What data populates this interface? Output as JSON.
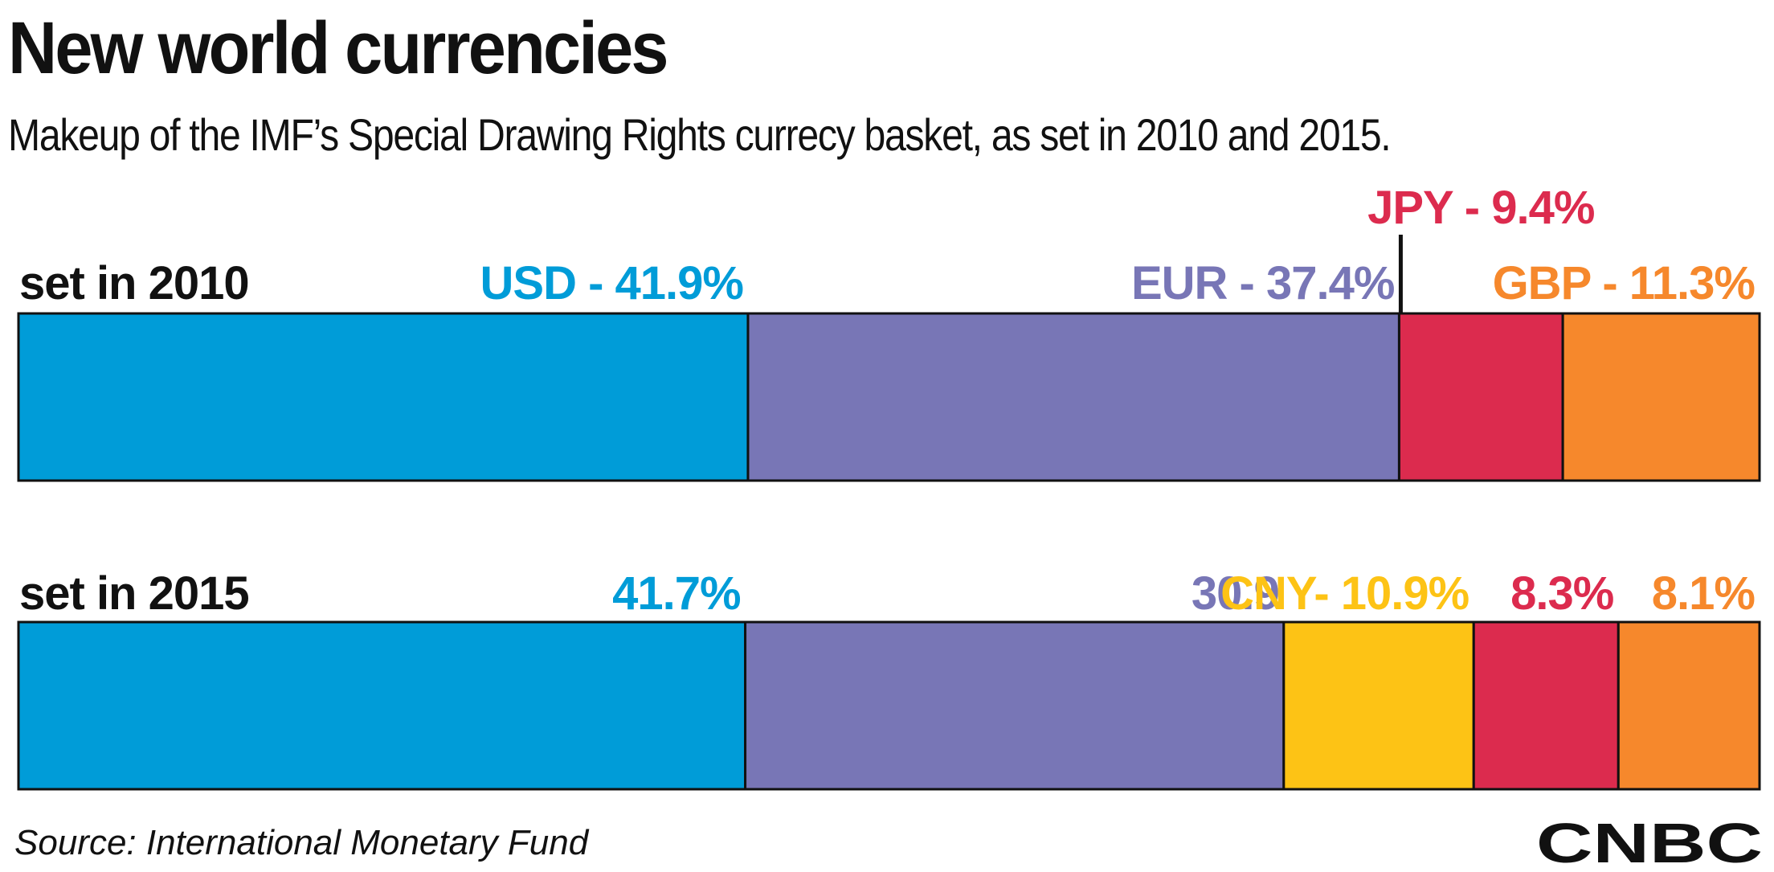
{
  "header": {
    "title": "New world currencies",
    "subtitle": "Makeup of the IMF’s Special Drawing Rights currecy basket, as set in 2010 and 2015."
  },
  "footer": {
    "source": "Source: International Monetary Fund",
    "brand": "CNBC"
  },
  "colors": {
    "USD": "#009cd8",
    "EUR": "#7876b6",
    "CNY": "#fdc315",
    "JPY": "#dc2b4e",
    "GBP": "#f6882c",
    "outline": "#111111"
  },
  "chart_data": {
    "type": "bar",
    "orientation": "horizontal",
    "stacked": true,
    "categories": [
      "set in 2010",
      "set in 2015"
    ],
    "series": [
      {
        "name": "USD",
        "values": [
          41.9,
          41.7
        ],
        "labels": [
          "USD - 41.9%",
          "41.7%"
        ],
        "color": "#009cd8"
      },
      {
        "name": "EUR",
        "values": [
          37.4,
          30.9
        ],
        "labels": [
          "EUR - 37.4%",
          "30.9"
        ],
        "color": "#7876b6"
      },
      {
        "name": "CNY",
        "values": [
          0,
          10.9
        ],
        "labels": [
          "",
          "CNY- 10.9%"
        ],
        "color": "#fdc315"
      },
      {
        "name": "JPY",
        "values": [
          9.4,
          8.3
        ],
        "labels": [
          "JPY - 9.4%",
          "8.3%"
        ],
        "color": "#dc2b4e"
      },
      {
        "name": "GBP",
        "values": [
          11.3,
          8.1
        ],
        "labels": [
          "GBP - 11.3%",
          "8.1%"
        ],
        "color": "#f6882c"
      }
    ],
    "xlim": [
      0,
      100
    ],
    "grid": false,
    "legend": "none"
  }
}
